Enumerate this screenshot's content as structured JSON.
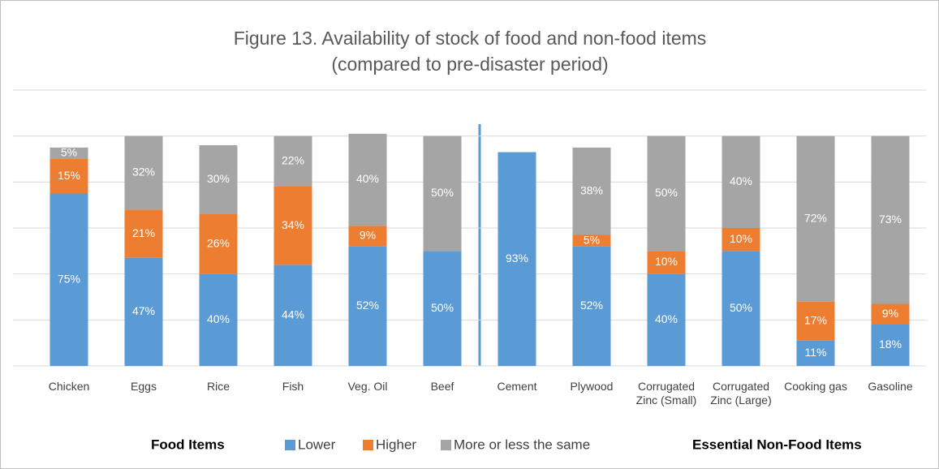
{
  "chart_data": {
    "type": "stacked_bar",
    "title": "Figure 13. Availability of stock of food and non-food items",
    "subtitle": "(compared to pre-disaster period)",
    "categories": [
      "Chicken",
      "Eggs",
      "Rice",
      "Fish",
      "Veg. Oil",
      "Beef",
      "Cement",
      "Plywood",
      "Corrugated Zinc (Small)",
      "Corrugated Zinc (Large)",
      "Cooking gas",
      "Gasoline"
    ],
    "groups": [
      {
        "label": "Food Items"
      },
      {
        "label": "Essential Non-Food Items"
      }
    ],
    "series": [
      {
        "name": "Lower",
        "color": "#5b9bd5",
        "values": [
          75,
          47,
          40,
          44,
          52,
          50,
          93,
          52,
          40,
          50,
          11,
          18
        ],
        "value_labels": [
          "75%",
          "47%",
          "40%",
          "44%",
          "52%",
          "50%",
          "93%",
          "52%",
          "40%",
          "50%",
          "11%",
          "18%"
        ]
      },
      {
        "name": "Higher",
        "color": "#ed7d31",
        "values": [
          15,
          21,
          26,
          34,
          9,
          null,
          null,
          5,
          10,
          10,
          17,
          9
        ],
        "value_labels": [
          "15%",
          "21%",
          "26%",
          "34%",
          "9%",
          null,
          null,
          "5%",
          "10%",
          "10%",
          "17%",
          "9%"
        ]
      },
      {
        "name": "More or less the same",
        "color": "#a5a5a5",
        "values": [
          5,
          32,
          30,
          22,
          40,
          50,
          null,
          38,
          50,
          40,
          72,
          73
        ],
        "value_labels": [
          "5%",
          "32%",
          "30%",
          "22%",
          "40%",
          "50%",
          null,
          "38%",
          "50%",
          "40%",
          "72%",
          "73%"
        ]
      }
    ],
    "ylim": [
      0,
      120
    ],
    "yticks": [
      0,
      20,
      40,
      60,
      80,
      100,
      120
    ],
    "grid": true
  }
}
